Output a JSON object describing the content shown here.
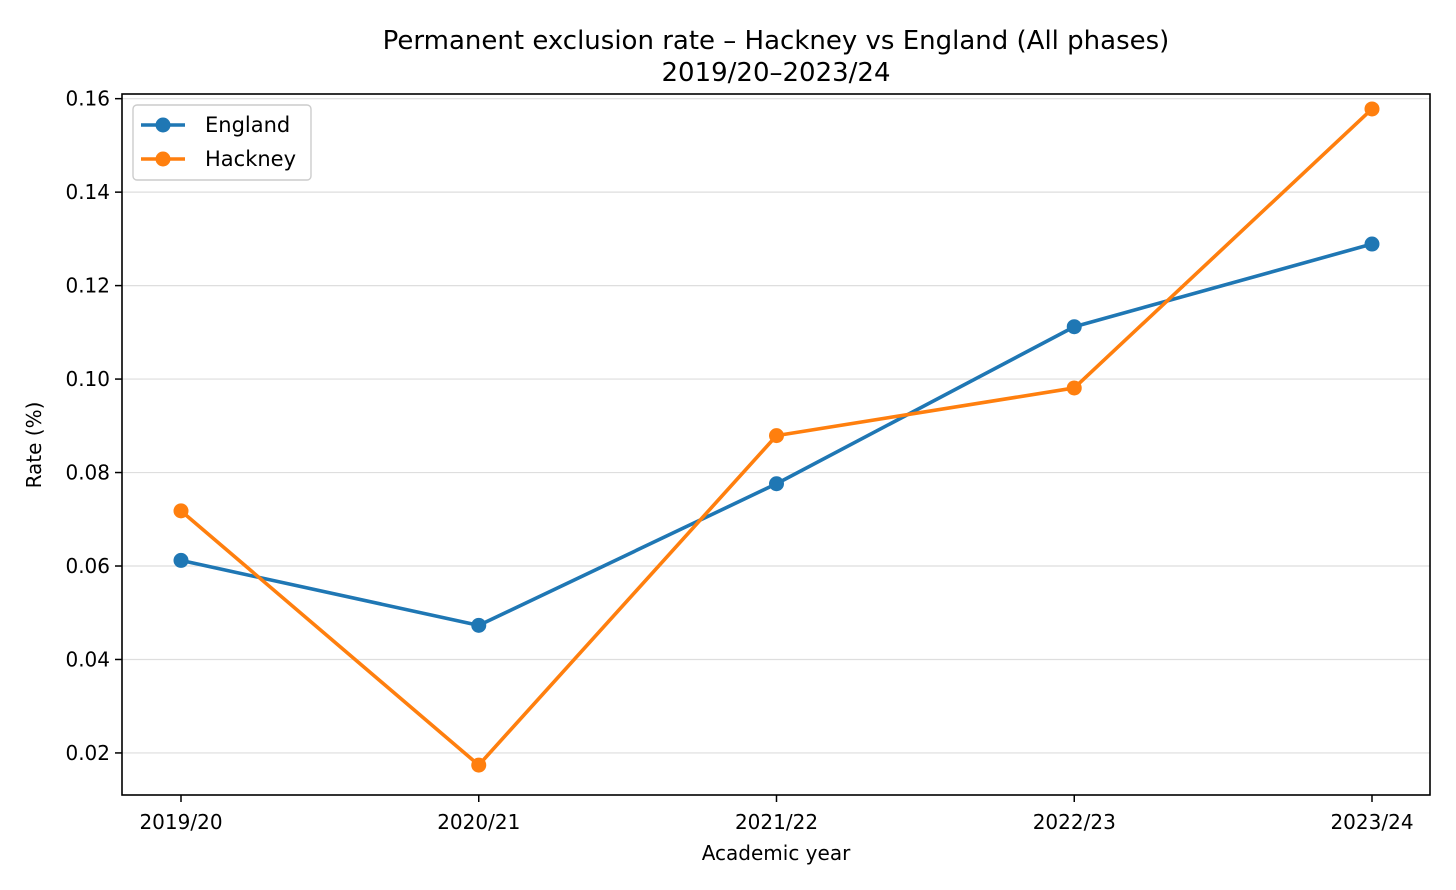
{
  "chart_data": {
    "type": "line",
    "title": "Permanent exclusion rate – Hackney vs England (All phases)",
    "subtitle": "2019/20–2023/24",
    "xlabel": "Academic year",
    "ylabel": "Rate (%)",
    "categories": [
      "2019/20",
      "2020/21",
      "2021/22",
      "2022/23",
      "2023/24"
    ],
    "ylim": [
      0.011,
      0.161
    ],
    "yticks": [
      0.02,
      0.04,
      0.06,
      0.08,
      0.1,
      0.12,
      0.14,
      0.16
    ],
    "ytick_labels": [
      "0.02",
      "0.04",
      "0.06",
      "0.08",
      "0.10",
      "0.12",
      "0.14",
      "0.16"
    ],
    "grid": "horizontal",
    "legend_position": "top-left",
    "series": [
      {
        "name": "England",
        "color": "#1f77b4",
        "marker": "circle",
        "values": [
          0.0612,
          0.0473,
          0.0776,
          0.1112,
          0.1289
        ]
      },
      {
        "name": "Hackney",
        "color": "#ff7f0e",
        "marker": "circle",
        "values": [
          0.0718,
          0.0174,
          0.0879,
          0.0981,
          0.1578
        ]
      }
    ]
  }
}
